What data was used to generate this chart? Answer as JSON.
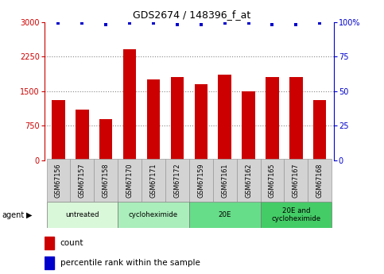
{
  "title": "GDS2674 / 148396_f_at",
  "samples": [
    "GSM67156",
    "GSM67157",
    "GSM67158",
    "GSM67170",
    "GSM67171",
    "GSM67172",
    "GSM67159",
    "GSM67161",
    "GSM67162",
    "GSM67165",
    "GSM67167",
    "GSM67168"
  ],
  "counts": [
    1300,
    1100,
    900,
    2400,
    1750,
    1800,
    1650,
    1850,
    1500,
    1800,
    1800,
    1300
  ],
  "percentile_ranks": [
    99,
    99,
    98,
    99,
    99,
    98,
    98,
    99,
    99,
    98,
    98,
    99
  ],
  "bar_color": "#cc0000",
  "dot_color": "#0000cc",
  "ylim_left": [
    0,
    3000
  ],
  "ylim_right": [
    0,
    100
  ],
  "yticks_left": [
    0,
    750,
    1500,
    2250,
    3000
  ],
  "yticks_right": [
    0,
    25,
    50,
    75,
    100
  ],
  "ytick_right_labels": [
    "0",
    "25",
    "50",
    "75",
    "100%"
  ],
  "groups": [
    {
      "label": "untreated",
      "start": 0,
      "end": 3,
      "color": "#d9f7d9"
    },
    {
      "label": "cycloheximide",
      "start": 3,
      "end": 6,
      "color": "#aaeebb"
    },
    {
      "label": "20E",
      "start": 6,
      "end": 9,
      "color": "#66dd88"
    },
    {
      "label": "20E and\ncycloheximide",
      "start": 9,
      "end": 12,
      "color": "#44cc66"
    }
  ],
  "tick_bg_color": "#d3d3d3",
  "agent_label": "agent",
  "legend_count_label": "count",
  "legend_pct_label": "percentile rank within the sample",
  "background_color": "#ffffff"
}
